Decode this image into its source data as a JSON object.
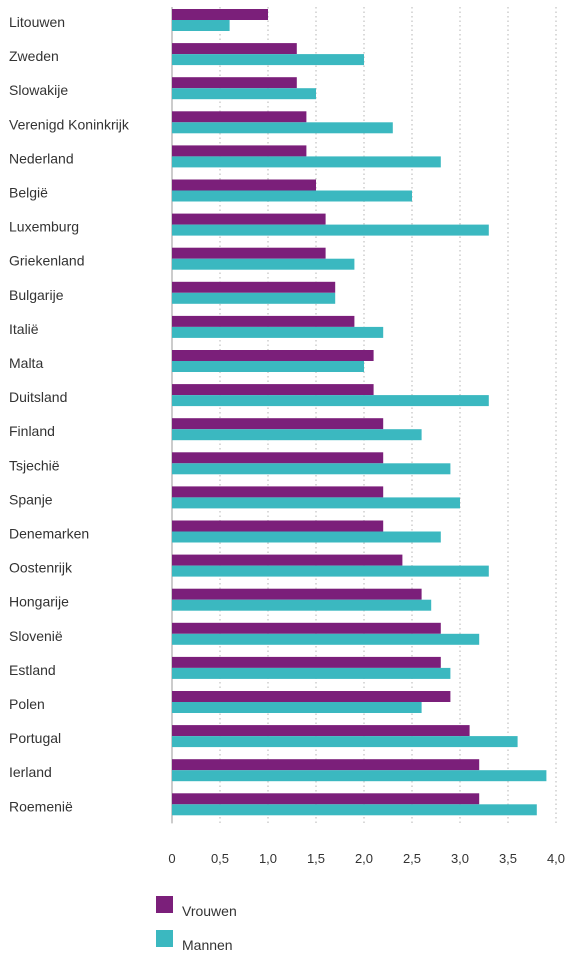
{
  "chart_data": {
    "type": "bar",
    "orientation": "horizontal",
    "categories": [
      "Litouwen",
      "Zweden",
      "Slowakije",
      "Verenigd Koninkrijk",
      "Nederland",
      "België",
      "Luxemburg",
      "Griekenland",
      "Bulgarije",
      "Italië",
      "Malta",
      "Duitsland",
      "Finland",
      "Tsjechië",
      "Spanje",
      "Denemarken",
      "Oostenrijk",
      "Hongarije",
      "Slovenië",
      "Estland",
      "Polen",
      "Portugal",
      "Ierland",
      "Roemenië"
    ],
    "series": [
      {
        "name": "Vrouwen",
        "color": "#7b1f7a",
        "values": [
          1.0,
          1.3,
          1.3,
          1.4,
          1.4,
          1.5,
          1.6,
          1.6,
          1.7,
          1.9,
          2.1,
          2.1,
          2.2,
          2.2,
          2.2,
          2.2,
          2.4,
          2.6,
          2.8,
          2.8,
          2.9,
          3.1,
          3.2,
          3.2
        ]
      },
      {
        "name": "Mannen",
        "color": "#3bb8c0",
        "values": [
          0.6,
          2.0,
          1.5,
          2.3,
          2.8,
          2.5,
          3.3,
          1.9,
          1.7,
          2.2,
          2.0,
          3.3,
          2.6,
          2.9,
          3.0,
          2.8,
          3.3,
          2.7,
          3.2,
          2.9,
          2.6,
          3.6,
          3.9,
          3.8
        ]
      }
    ],
    "xlim": [
      0,
      4.0
    ],
    "ticks": [
      "0",
      "0,5",
      "1,0",
      "1,5",
      "2,0",
      "2,5",
      "3,0",
      "3,5",
      "4,0"
    ],
    "grid": true,
    "legend_position": "bottom-left"
  }
}
